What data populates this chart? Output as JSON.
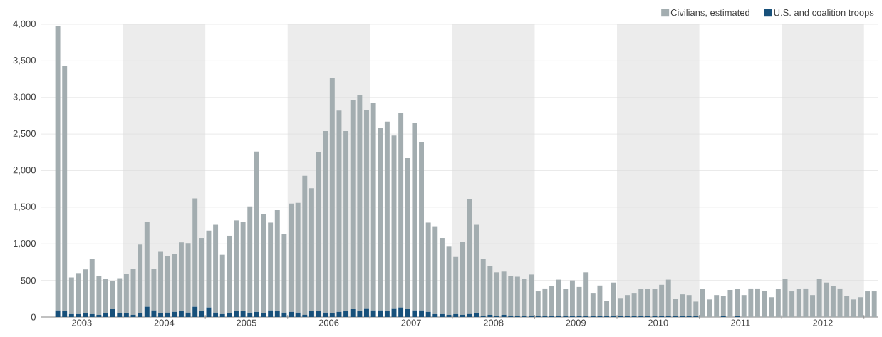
{
  "chart_data": {
    "type": "bar",
    "stacked": true,
    "x": [
      "2003-03",
      "2003-04",
      "2003-05",
      "2003-06",
      "2003-07",
      "2003-08",
      "2003-09",
      "2003-10",
      "2003-11",
      "2003-12",
      "2004-01",
      "2004-02",
      "2004-03",
      "2004-04",
      "2004-05",
      "2004-06",
      "2004-07",
      "2004-08",
      "2004-09",
      "2004-10",
      "2004-11",
      "2004-12",
      "2005-01",
      "2005-02",
      "2005-03",
      "2005-04",
      "2005-05",
      "2005-06",
      "2005-07",
      "2005-08",
      "2005-09",
      "2005-10",
      "2005-11",
      "2005-12",
      "2006-01",
      "2006-02",
      "2006-03",
      "2006-04",
      "2006-05",
      "2006-06",
      "2006-07",
      "2006-08",
      "2006-09",
      "2006-10",
      "2006-11",
      "2006-12",
      "2007-01",
      "2007-02",
      "2007-03",
      "2007-04",
      "2007-05",
      "2007-06",
      "2007-07",
      "2007-08",
      "2007-09",
      "2007-10",
      "2007-11",
      "2007-12",
      "2008-01",
      "2008-02",
      "2008-03",
      "2008-04",
      "2008-05",
      "2008-06",
      "2008-07",
      "2008-08",
      "2008-09",
      "2008-10",
      "2008-11",
      "2008-12",
      "2009-01",
      "2009-02",
      "2009-03",
      "2009-04",
      "2009-05",
      "2009-06",
      "2009-07",
      "2009-08",
      "2009-09",
      "2009-10",
      "2009-11",
      "2009-12",
      "2010-01",
      "2010-02",
      "2010-03",
      "2010-04",
      "2010-05",
      "2010-06",
      "2010-07",
      "2010-08",
      "2010-09",
      "2010-10",
      "2010-11",
      "2010-12",
      "2011-01",
      "2011-02",
      "2011-03",
      "2011-04",
      "2011-05",
      "2011-06",
      "2011-07",
      "2011-08",
      "2011-09",
      "2011-10",
      "2011-11",
      "2011-12",
      "2012-01",
      "2012-02",
      "2012-03",
      "2012-04",
      "2012-05",
      "2012-06",
      "2012-07",
      "2012-08",
      "2012-09",
      "2012-10",
      "2012-11",
      "2012-12",
      "2013-01",
      "2013-02"
    ],
    "series": [
      {
        "name": "U.S. and coalition troops",
        "color": "#17507a",
        "values": [
          90,
          80,
          40,
          40,
          50,
          40,
          30,
          50,
          110,
          50,
          50,
          30,
          50,
          140,
          90,
          50,
          60,
          70,
          80,
          60,
          140,
          80,
          130,
          60,
          40,
          50,
          80,
          80,
          60,
          70,
          50,
          90,
          80,
          60,
          70,
          60,
          30,
          80,
          80,
          60,
          50,
          70,
          80,
          110,
          80,
          120,
          90,
          90,
          80,
          120,
          130,
          110,
          90,
          90,
          70,
          40,
          40,
          30,
          40,
          30,
          40,
          50,
          20,
          30,
          20,
          30,
          20,
          20,
          20,
          20,
          20,
          20,
          10,
          20,
          20,
          10,
          10,
          10,
          10,
          10,
          10,
          10,
          10,
          10,
          10,
          10,
          10,
          10,
          10,
          10,
          10,
          10,
          10,
          10,
          0,
          0,
          0,
          10,
          0,
          10,
          0,
          0,
          0,
          0,
          0,
          0,
          0,
          0,
          0,
          0,
          0,
          0,
          0,
          0,
          0,
          0,
          0,
          0,
          0,
          0
        ]
      },
      {
        "name": "Civilians, estimated",
        "color": "#a3adb0",
        "values": [
          3880,
          3350,
          500,
          560,
          600,
          750,
          530,
          470,
          380,
          480,
          540,
          630,
          940,
          1160,
          570,
          850,
          770,
          790,
          940,
          950,
          1480,
          1000,
          1050,
          1200,
          810,
          1060,
          1240,
          1220,
          1450,
          2190,
          1360,
          1200,
          1380,
          1070,
          1480,
          1500,
          1900,
          1680,
          2170,
          2480,
          3210,
          2750,
          2460,
          2850,
          2950,
          2710,
          2830,
          2500,
          2590,
          2360,
          2660,
          2060,
          2560,
          2300,
          1220,
          1200,
          1040,
          940,
          780,
          1000,
          1570,
          1210,
          770,
          670,
          590,
          590,
          540,
          530,
          500,
          560,
          330,
          370,
          410,
          490,
          360,
          490,
          400,
          600,
          320,
          420,
          210,
          460,
          250,
          290,
          320,
          370,
          370,
          370,
          430,
          500,
          240,
          300,
          290,
          200,
          380,
          240,
          300,
          280,
          370,
          370,
          300,
          390,
          390,
          360,
          270,
          380,
          520,
          350,
          380,
          390,
          300,
          520,
          470,
          420,
          390,
          290,
          240,
          270,
          350,
          350
        ]
      }
    ],
    "xlim": [
      "2003-01",
      "2013-03"
    ],
    "xticks": [
      {
        "value": "2003-07",
        "label": "2003"
      },
      {
        "value": "2004-01",
        "label": null
      },
      {
        "value": "2004-07",
        "label": "2004"
      },
      {
        "value": "2005-01",
        "label": null
      },
      {
        "value": "2005-07",
        "label": "2005"
      },
      {
        "value": "2006-01",
        "label": null
      },
      {
        "value": "2006-07",
        "label": "2006"
      },
      {
        "value": "2007-01",
        "label": null
      },
      {
        "value": "2007-07",
        "label": "2007"
      },
      {
        "value": "2008-01",
        "label": null
      },
      {
        "value": "2008-07",
        "label": "2008"
      },
      {
        "value": "2009-01",
        "label": null
      },
      {
        "value": "2009-07",
        "label": "2009"
      },
      {
        "value": "2010-01",
        "label": null
      },
      {
        "value": "2010-07",
        "label": "2010"
      },
      {
        "value": "2011-01",
        "label": null
      },
      {
        "value": "2011-07",
        "label": "2011"
      },
      {
        "value": "2012-01",
        "label": null
      },
      {
        "value": "2012-07",
        "label": "2012"
      },
      {
        "value": "2013-01",
        "label": null
      }
    ],
    "ylim": [
      0,
      4000
    ],
    "yticks": [
      0,
      500,
      {
        "value": 1000,
        "label": "1,000"
      },
      {
        "value": 1500,
        "label": "1,500"
      },
      {
        "value": 2000,
        "label": "2,000"
      },
      {
        "value": 2500,
        "label": "2,500"
      },
      {
        "value": 3000,
        "label": "3,000"
      },
      {
        "value": 3500,
        "label": "3,500"
      },
      {
        "value": 4000,
        "label": "4,000"
      }
    ],
    "grid": "y",
    "legend": "top right",
    "bands": [
      {
        "axis": "x",
        "from": "2004-01",
        "to": "2005-01",
        "color": "#ececec"
      },
      {
        "axis": "x",
        "from": "2006-01",
        "to": "2007-01",
        "color": "#ececec"
      },
      {
        "axis": "x",
        "from": "2008-01",
        "to": "2009-01",
        "color": "#ececec"
      },
      {
        "axis": "x",
        "from": "2010-01",
        "to": "2011-01",
        "color": "#ececec"
      },
      {
        "axis": "x",
        "from": "2012-01",
        "to": "2013-01",
        "color": "#ececec"
      }
    ]
  }
}
